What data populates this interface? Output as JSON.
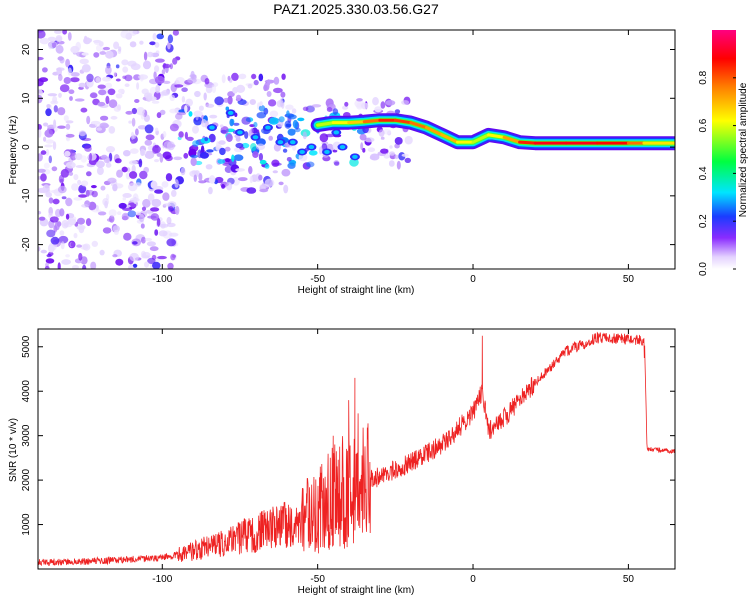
{
  "title": "PAZ1.2025.330.03.56.G27",
  "colors": {
    "signal": "#ee2222",
    "frame": "#000000",
    "scatter_light": "#d9b8ff",
    "scatter_dark": "#6a00f0"
  },
  "chart_data": [
    {
      "type": "heatmap",
      "title": "PAZ1.2025.330.03.56.G27",
      "xlabel": "Height of straight line (km)",
      "ylabel": "Frequency (Hz)",
      "xlim": [
        -140,
        65
      ],
      "ylim": [
        -25,
        24
      ],
      "xticks": [
        -100,
        -50,
        0,
        50
      ],
      "yticks": [
        -20,
        -10,
        0,
        10,
        20
      ],
      "colorbar": {
        "label": "Normalized spectral amplitude",
        "range": [
          0,
          1
        ],
        "ticks": [
          0.0,
          0.2,
          0.4,
          0.6,
          0.8
        ],
        "tick_labels": [
          "0.0",
          "0.2",
          "0.4",
          "0.6",
          "0.8"
        ],
        "colormap": [
          "#ffffff",
          "#d9c4ff",
          "#6a00f0",
          "#1a3cff",
          "#00e5ff",
          "#00ff40",
          "#ffff00",
          "#ff8000",
          "#ff0000",
          "#ff0080"
        ]
      },
      "ridge": [
        {
          "x": -50,
          "f": 4.5,
          "amp": 0.55
        },
        {
          "x": -45,
          "f": 5.0,
          "amp": 0.6
        },
        {
          "x": -40,
          "f": 5.0,
          "amp": 0.65
        },
        {
          "x": -35,
          "f": 5.2,
          "amp": 0.7
        },
        {
          "x": -30,
          "f": 5.5,
          "amp": 0.85
        },
        {
          "x": -25,
          "f": 5.5,
          "amp": 0.85
        },
        {
          "x": -20,
          "f": 5.0,
          "amp": 0.8
        },
        {
          "x": -15,
          "f": 4.0,
          "amp": 0.75
        },
        {
          "x": -10,
          "f": 2.5,
          "amp": 0.7
        },
        {
          "x": -5,
          "f": 1.0,
          "amp": 0.7
        },
        {
          "x": 0,
          "f": 1.0,
          "amp": 0.55
        },
        {
          "x": 5,
          "f": 2.5,
          "amp": 0.6
        },
        {
          "x": 10,
          "f": 2.0,
          "amp": 0.65
        },
        {
          "x": 15,
          "f": 1.0,
          "amp": 0.8
        },
        {
          "x": 20,
          "f": 0.8,
          "amp": 0.9
        },
        {
          "x": 30,
          "f": 0.8,
          "amp": 0.9
        },
        {
          "x": 40,
          "f": 0.8,
          "amp": 0.9
        },
        {
          "x": 50,
          "f": 0.8,
          "amp": 0.85
        },
        {
          "x": 55,
          "f": 0.8,
          "amp": 0.7
        },
        {
          "x": 65,
          "f": 0.8,
          "amp": 0.6
        }
      ]
    },
    {
      "type": "line",
      "xlabel": "Height of straight line (km)",
      "ylabel": "SNR (10 * v/v)",
      "xlim": [
        -140,
        65
      ],
      "ylim": [
        0,
        5400
      ],
      "xticks": [
        -100,
        -50,
        0,
        50
      ],
      "yticks": [
        1000,
        2000,
        3000,
        4000,
        5000
      ],
      "series": [
        {
          "name": "SNR",
          "trend": [
            {
              "x": -140,
              "y": 150
            },
            {
              "x": -120,
              "y": 180
            },
            {
              "x": -100,
              "y": 250
            },
            {
              "x": -90,
              "y": 400
            },
            {
              "x": -80,
              "y": 600
            },
            {
              "x": -70,
              "y": 800
            },
            {
              "x": -60,
              "y": 1000
            },
            {
              "x": -50,
              "y": 1300
            },
            {
              "x": -45,
              "y": 1600
            },
            {
              "x": -40,
              "y": 1800
            },
            {
              "x": -35,
              "y": 1900
            },
            {
              "x": -30,
              "y": 2100
            },
            {
              "x": -20,
              "y": 2400
            },
            {
              "x": -10,
              "y": 2800
            },
            {
              "x": 0,
              "y": 3500
            },
            {
              "x": 3,
              "y": 4000
            },
            {
              "x": 5,
              "y": 3100
            },
            {
              "x": 10,
              "y": 3400
            },
            {
              "x": 20,
              "y": 4200
            },
            {
              "x": 30,
              "y": 4900
            },
            {
              "x": 40,
              "y": 5200
            },
            {
              "x": 55,
              "y": 5150
            },
            {
              "x": 56,
              "y": 2700
            },
            {
              "x": 65,
              "y": 2650
            }
          ],
          "spikes": [
            {
              "x": -38,
              "y": 4300
            },
            {
              "x": -40,
              "y": 3800
            },
            {
              "x": -45,
              "y": 3000
            },
            {
              "x": -37,
              "y": 3500
            },
            {
              "x": 3,
              "y": 5250
            }
          ]
        }
      ]
    }
  ]
}
